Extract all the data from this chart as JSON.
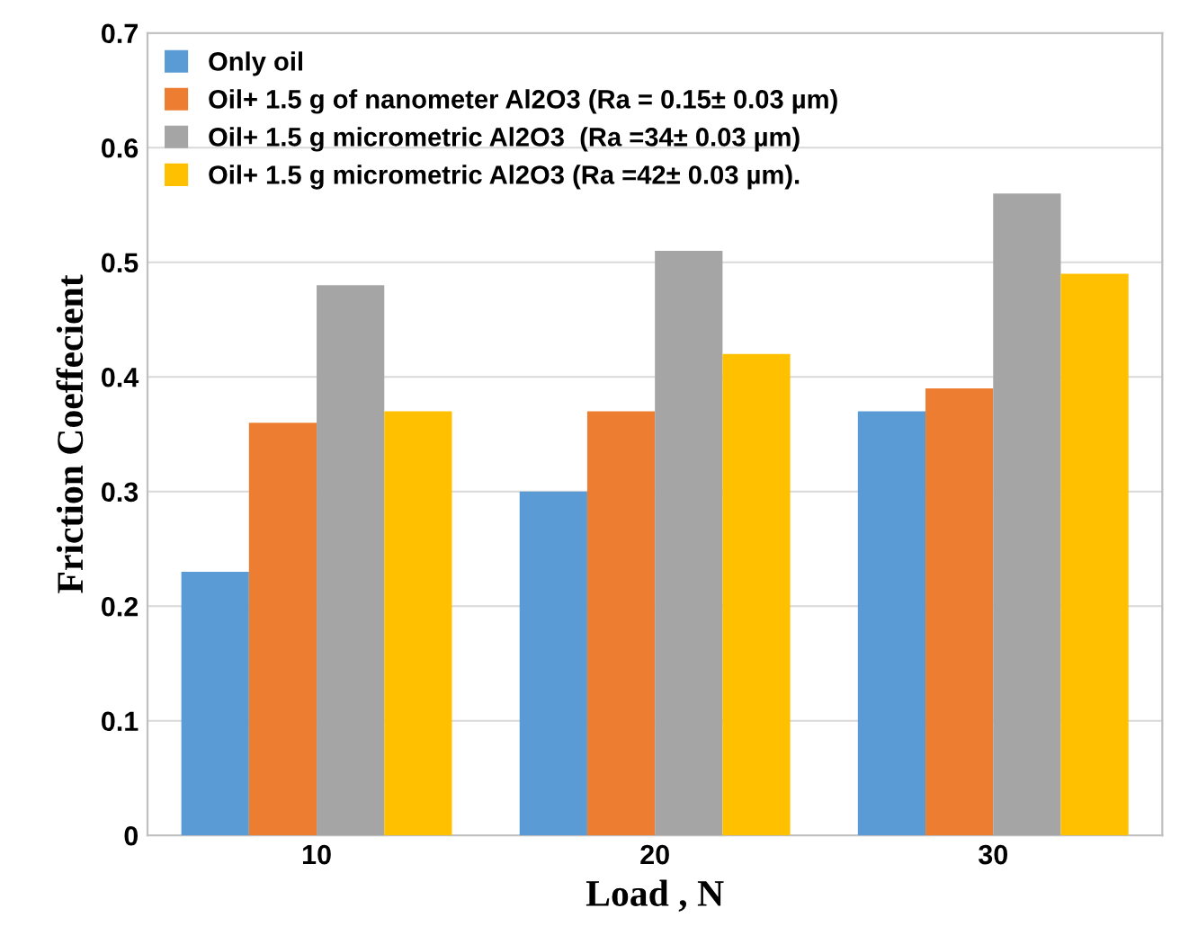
{
  "chart_data": {
    "type": "bar",
    "xlabel": "Load , N",
    "ylabel": "Friction Coeffecient",
    "categories": [
      "10",
      "20",
      "30"
    ],
    "series": [
      {
        "name": "Only oil",
        "color": "#5b9bd5",
        "values": [
          0.23,
          0.3,
          0.37
        ]
      },
      {
        "name": "Oil+ 1.5 g of nanometer Al2O3 (Ra = 0.15± 0.03 µm)",
        "color": "#ed7d31",
        "values": [
          0.36,
          0.37,
          0.39
        ]
      },
      {
        "name": "Oil+ 1.5 g micrometric Al2O3  (Ra =34± 0.03 µm)",
        "color": "#a5a5a5",
        "values": [
          0.48,
          0.51,
          0.56
        ]
      },
      {
        "name": "Oil+ 1.5 g micrometric Al2O3 (Ra =42± 0.03 µm).",
        "color": "#ffc000",
        "values": [
          0.37,
          0.42,
          0.49
        ]
      }
    ],
    "ylim": [
      0,
      0.7
    ],
    "yticks": [
      0,
      0.1,
      0.2,
      0.3,
      0.4,
      0.5,
      0.6,
      0.7
    ],
    "grid": "y",
    "legend": "top left"
  }
}
